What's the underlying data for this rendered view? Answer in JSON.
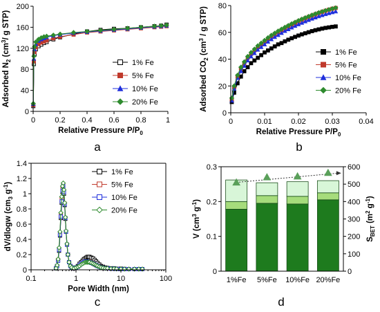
{
  "chart_data": [
    {
      "id": "a",
      "type": "line",
      "panel_label": "a",
      "xlabel": "Relative Pressure P/P",
      "xlabel_sub": "0",
      "ylabel_parts": [
        "Adsorbed N",
        "2",
        " (cm",
        "3",
        "/ g STP)"
      ],
      "xlim": [
        0,
        1
      ],
      "ylim": [
        0,
        200
      ],
      "xticks": [
        "0",
        "0.2",
        "0.4",
        "0.6",
        "0.8",
        "1"
      ],
      "yticks": [
        "0",
        "40",
        "80",
        "120",
        "160",
        "200"
      ],
      "legend_position": "right-middle",
      "series": [
        {
          "name": "1% Fe",
          "color": "#000000",
          "marker": "square-open",
          "x": [
            0.001,
            0.005,
            0.01,
            0.02,
            0.04,
            0.06,
            0.08,
            0.1,
            0.15,
            0.2,
            0.3,
            0.4,
            0.5,
            0.6,
            0.7,
            0.8,
            0.9,
            0.95,
            0.99
          ],
          "y": [
            10,
            90,
            108,
            118,
            124,
            127,
            130,
            132,
            137,
            141,
            147,
            152,
            155,
            157,
            158,
            160,
            162,
            163,
            165
          ]
        },
        {
          "name": "5% Fe",
          "color": "#c0392b",
          "marker": "square",
          "x": [
            0.001,
            0.005,
            0.01,
            0.02,
            0.04,
            0.06,
            0.08,
            0.1,
            0.15,
            0.2,
            0.3,
            0.4,
            0.5,
            0.6,
            0.7,
            0.8,
            0.9,
            0.95,
            0.99
          ],
          "y": [
            12,
            95,
            113,
            122,
            128,
            131,
            133,
            135,
            139,
            142,
            146,
            150,
            152,
            154,
            156,
            158,
            160,
            161,
            162
          ]
        },
        {
          "name": "10% Fe",
          "color": "#1f2fdc",
          "marker": "triangle",
          "x": [
            0.001,
            0.005,
            0.01,
            0.02,
            0.04,
            0.06,
            0.08,
            0.1,
            0.15,
            0.2,
            0.3,
            0.4,
            0.5,
            0.6,
            0.7,
            0.8,
            0.9,
            0.95,
            0.99
          ],
          "y": [
            14,
            100,
            118,
            128,
            134,
            137,
            139,
            141,
            144,
            146,
            149,
            151,
            153,
            155,
            157,
            159,
            161,
            162,
            163
          ]
        },
        {
          "name": "20% Fe",
          "color": "#2e8b2e",
          "marker": "diamond",
          "x": [
            0.001,
            0.005,
            0.01,
            0.02,
            0.04,
            0.06,
            0.08,
            0.1,
            0.15,
            0.2,
            0.3,
            0.4,
            0.5,
            0.6,
            0.7,
            0.8,
            0.9,
            0.95,
            0.99
          ],
          "y": [
            15,
            105,
            123,
            132,
            137,
            140,
            142,
            143,
            145,
            147,
            150,
            152,
            154,
            156,
            158,
            160,
            162,
            163,
            164
          ]
        }
      ]
    },
    {
      "id": "b",
      "type": "line",
      "panel_label": "b",
      "xlabel": "Relative Pressure P/P",
      "xlabel_sub": "0",
      "ylabel_parts": [
        "Adsorbed CO",
        "2",
        " (cm",
        "3",
        " / g STP)"
      ],
      "xlim": [
        0,
        0.04
      ],
      "ylim": [
        0,
        80
      ],
      "xticks": [
        "0",
        "0.01",
        "0.02",
        "0.03",
        "0.04"
      ],
      "yticks": [
        "0",
        "20",
        "40",
        "60",
        "80"
      ],
      "legend_position": "right-middle",
      "series": [
        {
          "name": "1% Fe",
          "color": "#000000",
          "marker": "square",
          "x": [
            0.0003,
            0.001,
            0.002,
            0.003,
            0.004,
            0.005,
            0.006,
            0.007,
            0.008,
            0.009,
            0.01,
            0.011,
            0.012,
            0.013,
            0.014,
            0.015,
            0.016,
            0.017,
            0.018,
            0.019,
            0.02,
            0.021,
            0.022,
            0.023,
            0.024,
            0.025,
            0.026,
            0.027,
            0.028,
            0.029,
            0.03,
            0.031
          ],
          "y": [
            8,
            15,
            22,
            27,
            31,
            34,
            37,
            39,
            41,
            43,
            45,
            46.5,
            48,
            49.5,
            51,
            52,
            53.3,
            54.5,
            55.6,
            56.6,
            57.6,
            58.5,
            59.3,
            60.1,
            60.9,
            61.6,
            62.2,
            62.8,
            63.3,
            63.7,
            64.1,
            64.4
          ]
        },
        {
          "name": "5% Fe",
          "color": "#c0392b",
          "marker": "square",
          "x": [
            0.0003,
            0.001,
            0.002,
            0.003,
            0.004,
            0.005,
            0.006,
            0.007,
            0.008,
            0.009,
            0.01,
            0.011,
            0.012,
            0.013,
            0.014,
            0.015,
            0.016,
            0.017,
            0.018,
            0.019,
            0.02,
            0.021,
            0.022,
            0.023,
            0.024,
            0.025,
            0.026,
            0.027,
            0.028,
            0.029,
            0.03,
            0.031
          ],
          "y": [
            10,
            19,
            27,
            33,
            37,
            41,
            44,
            46.5,
            49,
            51,
            53,
            55,
            57,
            58.6,
            60.2,
            61.7,
            63.1,
            64.5,
            65.8,
            67,
            68.2,
            69.4,
            70.5,
            71.5,
            72.5,
            73.5,
            74.4,
            75.3,
            76.1,
            76.9,
            77.6,
            78.2
          ]
        },
        {
          "name": "10% Fe",
          "color": "#1f2fdc",
          "marker": "triangle",
          "x": [
            0.0003,
            0.001,
            0.002,
            0.003,
            0.004,
            0.005,
            0.006,
            0.007,
            0.008,
            0.009,
            0.01,
            0.011,
            0.012,
            0.013,
            0.014,
            0.015,
            0.016,
            0.017,
            0.018,
            0.019,
            0.02,
            0.021,
            0.022,
            0.023,
            0.024,
            0.025,
            0.026,
            0.027,
            0.028,
            0.029,
            0.03,
            0.031
          ],
          "y": [
            9,
            18,
            26,
            31,
            35,
            39,
            42,
            44.5,
            47,
            49,
            51,
            53,
            54.8,
            56.5,
            58,
            59.5,
            61,
            62.3,
            63.6,
            64.8,
            66,
            67.1,
            68.2,
            69.2,
            70.2,
            71.1,
            72,
            72.8,
            73.6,
            74.3,
            75,
            75.6
          ]
        },
        {
          "name": "20% Fe",
          "color": "#2e8b2e",
          "marker": "diamond",
          "x": [
            0.0003,
            0.001,
            0.002,
            0.003,
            0.004,
            0.005,
            0.006,
            0.007,
            0.008,
            0.009,
            0.01,
            0.011,
            0.012,
            0.013,
            0.014,
            0.015,
            0.016,
            0.017,
            0.018,
            0.019,
            0.02,
            0.021,
            0.022,
            0.023,
            0.024,
            0.025,
            0.026,
            0.027,
            0.028,
            0.029,
            0.03,
            0.031
          ],
          "y": [
            11,
            20,
            28,
            34,
            38,
            42,
            45,
            47.5,
            50,
            52,
            54,
            56,
            57.8,
            59.4,
            61,
            62.4,
            63.8,
            65.1,
            66.4,
            67.6,
            68.8,
            69.9,
            70.9,
            71.9,
            72.9,
            73.8,
            74.7,
            75.5,
            76.3,
            77,
            77.7,
            78.3
          ]
        }
      ]
    },
    {
      "id": "c",
      "type": "line",
      "panel_label": "c",
      "xscale": "log",
      "xlabel": "Pore Width (nm)",
      "ylabel_parts": [
        "dV/dlogw (cm",
        "3",
        " g",
        "-1",
        ")"
      ],
      "xlim": [
        0.1,
        100
      ],
      "ylim": [
        0,
        1.4
      ],
      "xticks": [
        "0.1",
        "1",
        "10",
        "100"
      ],
      "yticks": [
        "0",
        "0.2",
        "0.4",
        "0.6",
        "0.8",
        "1",
        "1.2",
        "1.4"
      ],
      "legend_position": "top-right",
      "series": [
        {
          "name": "1% Fe",
          "color": "#000000",
          "marker": "square-open",
          "x": [
            0.36,
            0.38,
            0.4,
            0.42,
            0.44,
            0.46,
            0.48,
            0.5,
            0.52,
            0.54,
            0.56,
            0.58,
            0.6,
            0.63,
            0.66,
            0.7,
            0.75,
            0.8,
            0.9,
            1.0,
            1.1,
            1.2,
            1.3,
            1.4,
            1.5,
            1.6,
            1.7,
            1.8,
            1.9,
            2.0,
            2.2,
            2.4,
            2.6,
            2.8,
            3.0,
            3.3,
            3.6,
            4.0,
            4.5,
            5.0,
            6,
            7,
            8,
            10,
            12,
            15,
            20,
            25,
            30
          ],
          "y": [
            0.02,
            0.05,
            0.12,
            0.25,
            0.45,
            0.68,
            0.88,
            1.02,
            1.08,
            1.0,
            0.85,
            0.67,
            0.5,
            0.33,
            0.2,
            0.1,
            0.05,
            0.03,
            0.02,
            0.03,
            0.05,
            0.08,
            0.1,
            0.12,
            0.14,
            0.15,
            0.16,
            0.17,
            0.17,
            0.17,
            0.16,
            0.15,
            0.13,
            0.11,
            0.09,
            0.07,
            0.05,
            0.04,
            0.03,
            0.025,
            0.02,
            0.02,
            0.015,
            0.015,
            0.012,
            0.01,
            0.01,
            0.01,
            0.01
          ]
        },
        {
          "name": "5% Fe",
          "color": "#c0392b",
          "marker": "square-open",
          "x": [
            0.36,
            0.38,
            0.4,
            0.42,
            0.44,
            0.46,
            0.48,
            0.5,
            0.52,
            0.54,
            0.56,
            0.58,
            0.6,
            0.63,
            0.66,
            0.7,
            0.75,
            0.8,
            0.9,
            1.0,
            1.1,
            1.2,
            1.3,
            1.4,
            1.5,
            1.6,
            1.7,
            1.8,
            1.9,
            2.0,
            2.2,
            2.4,
            2.6,
            2.8,
            3.0,
            3.3,
            3.6,
            4.0,
            4.5,
            5.0,
            6,
            7,
            8,
            10,
            12,
            15,
            20,
            25,
            30
          ],
          "y": [
            0.02,
            0.05,
            0.13,
            0.27,
            0.48,
            0.72,
            0.93,
            1.07,
            1.12,
            1.03,
            0.87,
            0.68,
            0.5,
            0.33,
            0.2,
            0.1,
            0.05,
            0.03,
            0.02,
            0.03,
            0.04,
            0.06,
            0.08,
            0.09,
            0.1,
            0.11,
            0.11,
            0.11,
            0.11,
            0.1,
            0.09,
            0.08,
            0.07,
            0.06,
            0.05,
            0.04,
            0.03,
            0.025,
            0.02,
            0.02,
            0.015,
            0.015,
            0.012,
            0.01,
            0.01,
            0.01,
            0.01,
            0.01,
            0.01
          ]
        },
        {
          "name": "10% Fe",
          "color": "#1f2fdc",
          "marker": "square-open",
          "x": [
            0.36,
            0.38,
            0.4,
            0.42,
            0.44,
            0.46,
            0.48,
            0.5,
            0.52,
            0.54,
            0.56,
            0.58,
            0.6,
            0.63,
            0.66,
            0.7,
            0.75,
            0.8,
            0.9,
            1.0,
            1.1,
            1.2,
            1.3,
            1.4,
            1.5,
            1.6,
            1.7,
            1.8,
            1.9,
            2.0,
            2.2,
            2.4,
            2.6,
            2.8,
            3.0,
            3.3,
            3.6,
            4.0,
            4.5,
            5.0,
            6,
            7,
            8,
            10,
            12,
            15,
            20,
            25,
            30
          ],
          "y": [
            0.02,
            0.05,
            0.12,
            0.26,
            0.46,
            0.7,
            0.9,
            1.04,
            1.1,
            1.02,
            0.86,
            0.68,
            0.5,
            0.33,
            0.2,
            0.1,
            0.05,
            0.03,
            0.02,
            0.03,
            0.04,
            0.06,
            0.08,
            0.09,
            0.1,
            0.11,
            0.11,
            0.11,
            0.1,
            0.1,
            0.09,
            0.08,
            0.07,
            0.06,
            0.05,
            0.04,
            0.03,
            0.025,
            0.02,
            0.02,
            0.015,
            0.015,
            0.012,
            0.01,
            0.01,
            0.01,
            0.01,
            0.01,
            0.01
          ]
        },
        {
          "name": "20% Fe",
          "color": "#2e8b2e",
          "marker": "diamond-open",
          "x": [
            0.36,
            0.38,
            0.4,
            0.42,
            0.44,
            0.46,
            0.48,
            0.5,
            0.52,
            0.54,
            0.56,
            0.58,
            0.6,
            0.63,
            0.66,
            0.7,
            0.75,
            0.8,
            0.9,
            1.0,
            1.1,
            1.2,
            1.3,
            1.4,
            1.5,
            1.6,
            1.7,
            1.8,
            1.9,
            2.0,
            2.2,
            2.4,
            2.6,
            2.8,
            3.0,
            3.3,
            3.6,
            4.0,
            4.5,
            5.0,
            6,
            7,
            8,
            10,
            12,
            15,
            20,
            25,
            30
          ],
          "y": [
            0.02,
            0.06,
            0.14,
            0.29,
            0.5,
            0.75,
            0.96,
            1.1,
            1.14,
            1.05,
            0.88,
            0.69,
            0.51,
            0.34,
            0.2,
            0.1,
            0.05,
            0.03,
            0.02,
            0.03,
            0.04,
            0.05,
            0.07,
            0.08,
            0.09,
            0.1,
            0.1,
            0.1,
            0.1,
            0.1,
            0.09,
            0.08,
            0.07,
            0.06,
            0.05,
            0.04,
            0.03,
            0.025,
            0.02,
            0.02,
            0.015,
            0.015,
            0.012,
            0.01,
            0.01,
            0.01,
            0.01,
            0.01,
            0.01
          ]
        }
      ]
    },
    {
      "id": "d",
      "type": "bar",
      "panel_label": "d",
      "stacked": true,
      "categories": [
        "1%Fe",
        "5%Fe",
        "10%Fe",
        "20%Fe"
      ],
      "ylabel_parts": [
        "V (cm",
        "3",
        " g",
        "-1",
        ")"
      ],
      "y2label_parts": [
        "S",
        "BET",
        " (m",
        "2",
        " g",
        "-1",
        ")"
      ],
      "ylim": [
        0,
        0.3
      ],
      "y2lim": [
        0,
        600
      ],
      "yticks": [
        "0",
        "0.1",
        "0.2",
        "0.3"
      ],
      "y2ticks": [
        "0",
        "100",
        "200",
        "300",
        "400",
        "500",
        "600"
      ],
      "series": [
        {
          "color": "#1e7b1e",
          "values": [
            0.178,
            0.195,
            0.193,
            0.205
          ]
        },
        {
          "color": "#a6dc7c",
          "values": [
            0.022,
            0.022,
            0.022,
            0.02
          ]
        },
        {
          "color": "#d8f6d8",
          "values": [
            0.062,
            0.037,
            0.042,
            0.035
          ]
        }
      ],
      "sbet": {
        "color": "#5aa05a",
        "values": [
          510,
          540,
          545,
          565
        ]
      }
    }
  ]
}
